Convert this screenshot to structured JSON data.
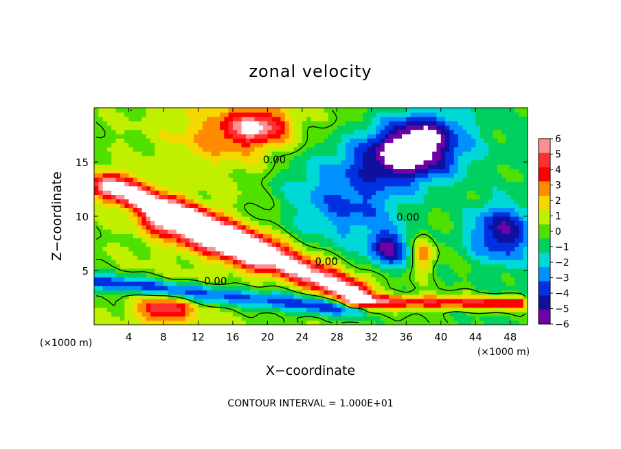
{
  "chart_data": {
    "type": "heatmap",
    "title": "zonal velocity",
    "xlabel": "X−coordinate",
    "ylabel": "Z−coordinate",
    "x_units_left": "(×1000 m)",
    "x_units_right": "(×1000 m)",
    "footer": "CONTOUR INTERVAL = 1.000E+01",
    "xlim": [
      0,
      50
    ],
    "ylim": [
      0,
      20
    ],
    "x_ticks": [
      4,
      8,
      12,
      16,
      20,
      24,
      28,
      32,
      36,
      40,
      44,
      48
    ],
    "x_tick_labels": [
      "4",
      "8",
      "12",
      "16",
      "20",
      "24",
      "28",
      "32",
      "36",
      "40",
      "44",
      "48"
    ],
    "y_ticks": [
      5,
      10,
      15
    ],
    "y_tick_labels": [
      "5",
      "10",
      "15"
    ],
    "colorbar": {
      "levels": [
        6,
        5,
        4,
        3,
        2,
        1,
        0,
        -1,
        -2,
        -3,
        -4,
        -5,
        -6
      ],
      "labels": [
        "6",
        "5",
        "4",
        "3",
        "2",
        "1",
        "0",
        "−1",
        "−2",
        "−3",
        "−4",
        "−5",
        "−6"
      ],
      "colors": [
        "#ff9090",
        "#ff3030",
        "#ff0000",
        "#ff8c00",
        "#f5d800",
        "#c0f000",
        "#50e000",
        "#00d060",
        "#00d8d8",
        "#0090ff",
        "#0030e0",
        "#1010a0",
        "#7000a8"
      ]
    },
    "contour_labels": [
      {
        "text": "0.00",
        "x": 20.8,
        "y": 14.9
      },
      {
        "text": "0.00",
        "x": 36.2,
        "y": 9.6
      },
      {
        "text": "0.00",
        "x": 26.8,
        "y": 5.5
      },
      {
        "text": "0.00",
        "x": 14.0,
        "y": 3.7
      }
    ],
    "features": [
      {
        "kind": "high",
        "x": 19,
        "z": 18.4,
        "v": 4.5,
        "sx": 3.5,
        "sz": 1.6
      },
      {
        "kind": "high",
        "x": 16,
        "z": 17.5,
        "v": 2.5,
        "sx": 6,
        "sz": 2.5
      },
      {
        "kind": "low",
        "x": 36,
        "z": 15.5,
        "v": -6.5,
        "sx": 6,
        "sz": 2.4
      },
      {
        "kind": "low",
        "x": 30,
        "z": 11,
        "v": -3.5,
        "sx": 6,
        "sz": 4
      },
      {
        "kind": "low",
        "x": 34,
        "z": 7,
        "v": -5,
        "sx": 2.2,
        "sz": 1.6
      },
      {
        "kind": "low",
        "x": 47,
        "z": 8.5,
        "v": -5,
        "sx": 3.5,
        "sz": 2.5
      },
      {
        "kind": "low",
        "x": 38,
        "z": 18,
        "v": -4,
        "sx": 5,
        "sz": 2
      },
      {
        "kind": "low",
        "x": 24,
        "z": 13,
        "v": -1.2,
        "sx": 5,
        "sz": 4
      },
      {
        "kind": "ridge",
        "x0": 2,
        "z0": 12.8,
        "x1": 30,
        "z1": 3.0,
        "v": 7,
        "w": 2.2
      },
      {
        "kind": "ridge",
        "x0": 8,
        "z0": 9.5,
        "x1": 18,
        "z1": 6.5,
        "v": 4,
        "w": 2.5
      },
      {
        "kind": "ridge",
        "x0": 30,
        "z0": 2.2,
        "x1": 49,
        "z1": 2.0,
        "v": 5,
        "w": 1.0
      },
      {
        "kind": "trough",
        "x0": 0,
        "z0": 4.0,
        "x1": 30,
        "z1": 1.4,
        "v": -4.5,
        "w": 1.3
      },
      {
        "kind": "high",
        "x": 8,
        "z": 1.5,
        "v": 5,
        "sx": 3,
        "sz": 1.2
      },
      {
        "kind": "high",
        "x": 38,
        "z": 6.5,
        "v": 3.5,
        "sx": 1.2,
        "sz": 1.8
      }
    ]
  }
}
